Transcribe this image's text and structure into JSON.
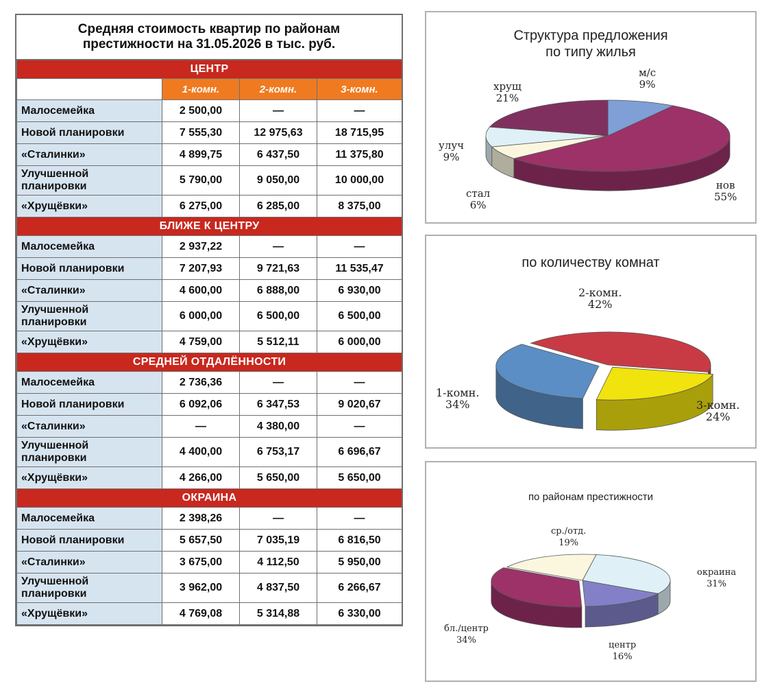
{
  "table": {
    "title_line1": "Средняя стоимость квартир по районам",
    "title_line2": "престижности на 31.05.2026 в тыс. руб.",
    "columns": [
      "1-комн.",
      "2-комн.",
      "3-комн."
    ],
    "sections": [
      {
        "name": "ЦЕНТР",
        "rows": [
          {
            "label": "Малосемейка",
            "values": [
              "2 500,00",
              "—",
              "—"
            ]
          },
          {
            "label": "Новой планировки",
            "values": [
              "7 555,30",
              "12 975,63",
              "18 715,95"
            ]
          },
          {
            "label": "«Сталинки»",
            "values": [
              "4 899,75",
              "6 437,50",
              "11 375,80"
            ]
          },
          {
            "label_line1": "Улучшенной",
            "label_line2": "планировки",
            "values": [
              "5 790,00",
              "9 050,00",
              "10 000,00"
            ]
          },
          {
            "label": "«Хрущёвки»",
            "values": [
              "6 275,00",
              "6 285,00",
              "8 375,00"
            ]
          }
        ]
      },
      {
        "name": "БЛИЖЕ К ЦЕНТРУ",
        "rows": [
          {
            "label": "Малосемейка",
            "values": [
              "2 937,22",
              "—",
              "—"
            ]
          },
          {
            "label": "Новой планировки",
            "values": [
              "7 207,93",
              "9 721,63",
              "11 535,47"
            ]
          },
          {
            "label": "«Сталинки»",
            "values": [
              "4 600,00",
              "6 888,00",
              "6 930,00"
            ]
          },
          {
            "label_line1": "Улучшенной",
            "label_line2": "планировки",
            "values": [
              "6 000,00",
              "6 500,00",
              "6 500,00"
            ]
          },
          {
            "label": "«Хрущёвки»",
            "values": [
              "4 759,00",
              "5 512,11",
              "6 000,00"
            ]
          }
        ]
      },
      {
        "name": "СРЕДНЕЙ ОТДАЛЁННОСТИ",
        "rows": [
          {
            "label": "Малосемейка",
            "values": [
              "2 736,36",
              "—",
              "—"
            ]
          },
          {
            "label": "Новой планировки",
            "values": [
              "6 092,06",
              "6 347,53",
              "9 020,67"
            ]
          },
          {
            "label": "«Сталинки»",
            "values": [
              "—",
              "4 380,00",
              "—"
            ]
          },
          {
            "label_line1": "Улучшенной",
            "label_line2": "планировки",
            "values": [
              "4 400,00",
              "6 753,17",
              "6 696,67"
            ]
          },
          {
            "label": "«Хрущёвки»",
            "values": [
              "4 266,00",
              "5 650,00",
              "5 650,00"
            ]
          }
        ]
      },
      {
        "name": "ОКРАИНА",
        "rows": [
          {
            "label": "Малосемейка",
            "values": [
              "2 398,26",
              "—",
              "—"
            ]
          },
          {
            "label": "Новой планировки",
            "values": [
              "5 657,50",
              "7 035,19",
              "6 816,50"
            ]
          },
          {
            "label": "«Сталинки»",
            "values": [
              "3 675,00",
              "4 112,50",
              "5 950,00"
            ]
          },
          {
            "label_line1": "Улучшенной",
            "label_line2": "планировки",
            "values": [
              "3 962,00",
              "4 837,50",
              "6 266,67"
            ]
          },
          {
            "label": "«Хрущёвки»",
            "values": [
              "4 769,08",
              "5 314,88",
              "6 330,00"
            ]
          }
        ]
      }
    ],
    "colors": {
      "section": "#c8281e",
      "header": "#f07a20",
      "label_bg": "#d6e4f0"
    }
  },
  "chart_data": [
    {
      "type": "pie",
      "title_line1": "Структура предложения",
      "title_line2": "по типу жилья",
      "slices": [
        {
          "name": "м/с",
          "value": 9,
          "label": "9%",
          "color": "#7f9fd6"
        },
        {
          "name": "нов",
          "value": 55,
          "label": "55%",
          "color": "#9c3268"
        },
        {
          "name": "стал",
          "value": 6,
          "label": "6%",
          "color": "#fbf7df"
        },
        {
          "name": "улуч",
          "value": 9,
          "label": "9%",
          "color": "#dff1f6"
        },
        {
          "name": "хрущ",
          "value": 21,
          "label": "21%",
          "color": "#80305f"
        }
      ]
    },
    {
      "type": "pie",
      "title": "по количеству комнат",
      "slices": [
        {
          "name": "2-комн.",
          "value": 42,
          "label": "42%",
          "color": "#c83b45"
        },
        {
          "name": "3-комн.",
          "value": 24,
          "label": "24%",
          "color": "#f1e30e"
        },
        {
          "name": "1-комн.",
          "value": 34,
          "label": "34%",
          "color": "#5b8ec4"
        }
      ]
    },
    {
      "type": "pie",
      "title": "по районам престижности",
      "slices": [
        {
          "name": "окраина",
          "value": 31,
          "label": "31%",
          "color": "#dff1f6"
        },
        {
          "name": "центр",
          "value": 16,
          "label": "16%",
          "color": "#8380c8"
        },
        {
          "name": "бл./центр",
          "value": 34,
          "label": "34%",
          "color": "#9c3268"
        },
        {
          "name": "ср./отд.",
          "value": 19,
          "label": "19%",
          "color": "#fbf7df"
        }
      ]
    }
  ]
}
